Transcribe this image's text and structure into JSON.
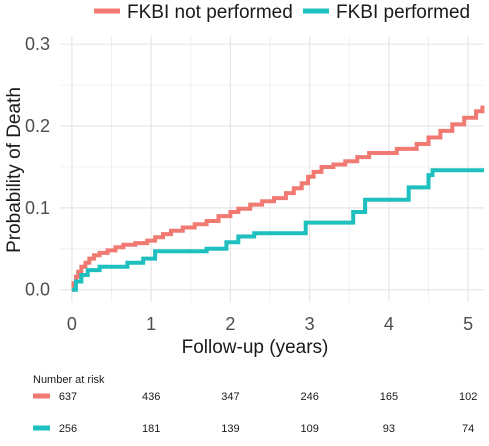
{
  "chart_data": {
    "type": "line",
    "xlabel": "Follow-up (years)",
    "ylabel": "Probability of Death",
    "xlim": [
      -0.15,
      5.2
    ],
    "ylim": [
      -0.015,
      0.31
    ],
    "x_ticks": [
      "0",
      "1",
      "2",
      "3",
      "4",
      "5"
    ],
    "y_ticks": [
      "0.0",
      "0.1",
      "0.2",
      "0.3"
    ],
    "grid": true,
    "legend_position": "top",
    "series": [
      {
        "name": "FKBI not performed",
        "color": "#f07a72",
        "step": true,
        "points": [
          [
            0.0,
            0.0
          ],
          [
            0.02,
            0.008
          ],
          [
            0.05,
            0.016
          ],
          [
            0.08,
            0.022
          ],
          [
            0.12,
            0.028
          ],
          [
            0.17,
            0.033
          ],
          [
            0.22,
            0.038
          ],
          [
            0.28,
            0.042
          ],
          [
            0.35,
            0.045
          ],
          [
            0.45,
            0.048
          ],
          [
            0.55,
            0.052
          ],
          [
            0.65,
            0.055
          ],
          [
            0.8,
            0.057
          ],
          [
            0.95,
            0.06
          ],
          [
            1.05,
            0.064
          ],
          [
            1.15,
            0.068
          ],
          [
            1.25,
            0.072
          ],
          [
            1.4,
            0.076
          ],
          [
            1.55,
            0.08
          ],
          [
            1.7,
            0.084
          ],
          [
            1.85,
            0.09
          ],
          [
            2.0,
            0.095
          ],
          [
            2.1,
            0.099
          ],
          [
            2.25,
            0.104
          ],
          [
            2.4,
            0.108
          ],
          [
            2.55,
            0.112
          ],
          [
            2.7,
            0.118
          ],
          [
            2.8,
            0.124
          ],
          [
            2.9,
            0.13
          ],
          [
            2.98,
            0.138
          ],
          [
            3.05,
            0.144
          ],
          [
            3.15,
            0.15
          ],
          [
            3.3,
            0.153
          ],
          [
            3.45,
            0.157
          ],
          [
            3.6,
            0.162
          ],
          [
            3.75,
            0.167
          ],
          [
            4.1,
            0.172
          ],
          [
            4.35,
            0.178
          ],
          [
            4.5,
            0.186
          ],
          [
            4.65,
            0.194
          ],
          [
            4.8,
            0.202
          ],
          [
            4.95,
            0.21
          ],
          [
            5.1,
            0.218
          ],
          [
            5.18,
            0.225
          ]
        ],
        "at_risk": [
          637,
          436,
          347,
          246,
          165,
          102
        ]
      },
      {
        "name": "FKBI performed",
        "color": "#1dbfbf",
        "step": true,
        "points": [
          [
            0.0,
            0.0
          ],
          [
            0.05,
            0.01
          ],
          [
            0.12,
            0.018
          ],
          [
            0.2,
            0.024
          ],
          [
            0.35,
            0.028
          ],
          [
            0.7,
            0.033
          ],
          [
            0.9,
            0.038
          ],
          [
            1.05,
            0.047
          ],
          [
            1.7,
            0.05
          ],
          [
            1.95,
            0.058
          ],
          [
            2.1,
            0.065
          ],
          [
            2.3,
            0.069
          ],
          [
            2.95,
            0.082
          ],
          [
            3.55,
            0.095
          ],
          [
            3.7,
            0.11
          ],
          [
            4.25,
            0.125
          ],
          [
            4.5,
            0.14
          ],
          [
            4.55,
            0.146
          ],
          [
            5.2,
            0.146
          ]
        ],
        "at_risk": [
          256,
          181,
          139,
          109,
          93,
          74
        ]
      }
    ],
    "risk_table": {
      "title": "Number at risk",
      "x_positions": [
        0,
        1,
        2,
        3,
        4,
        5
      ]
    }
  }
}
